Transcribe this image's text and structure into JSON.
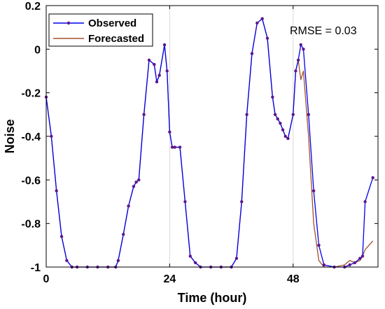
{
  "chart_data": {
    "type": "line",
    "xlabel": "Time (hour)",
    "ylabel": "Noise",
    "xlim": [
      0,
      64.5
    ],
    "ylim": [
      -1,
      0.2
    ],
    "xticks": [
      0,
      24,
      48
    ],
    "xtick_labels": [
      "0",
      "24",
      "48"
    ],
    "yticks": [
      -1,
      -0.8,
      -0.6,
      -0.4,
      -0.2,
      0,
      0.2
    ],
    "ytick_labels": [
      "-1",
      "-0.8",
      "-0.6",
      "-0.4",
      "-0.2",
      "0",
      "0.2"
    ],
    "grid": "x-only",
    "legend": "top-left",
    "annotation": "RMSE = 0.03",
    "series": [
      {
        "name": "Observed",
        "color": "#0000ee",
        "marker_color": "#5c168a",
        "marker": "dot",
        "x": [
          0,
          1,
          2,
          3,
          4,
          5,
          6,
          8,
          10,
          12,
          13.5,
          14,
          15,
          16,
          17,
          17.5,
          18,
          19,
          20,
          21,
          21.5,
          22,
          23,
          23.5,
          24,
          24.5,
          25,
          26,
          27,
          28,
          29,
          30,
          32,
          34,
          36,
          37,
          38,
          39,
          40,
          41,
          42,
          43,
          44,
          44.5,
          45,
          45.5,
          46,
          46.5,
          47,
          48,
          48.5,
          49,
          49.5,
          50,
          51,
          52,
          53,
          54,
          56,
          58,
          59,
          60,
          61,
          61.5,
          62,
          63.5
        ],
        "y": [
          -0.22,
          -0.4,
          -0.65,
          -0.86,
          -0.97,
          -1.0,
          -1.0,
          -1.0,
          -1.0,
          -1.0,
          -1.0,
          -0.97,
          -0.85,
          -0.72,
          -0.63,
          -0.61,
          -0.6,
          -0.3,
          -0.05,
          -0.07,
          -0.15,
          -0.12,
          0.02,
          -0.1,
          -0.38,
          -0.45,
          -0.45,
          -0.45,
          -0.7,
          -0.95,
          -0.98,
          -1.0,
          -1.0,
          -1.0,
          -1.0,
          -0.96,
          -0.7,
          -0.3,
          -0.02,
          0.12,
          0.14,
          0.05,
          -0.22,
          -0.3,
          -0.32,
          -0.34,
          -0.37,
          -0.4,
          -0.41,
          -0.3,
          -0.1,
          -0.05,
          0.02,
          0.0,
          -0.3,
          -0.65,
          -0.9,
          -0.99,
          -1.0,
          -1.0,
          -0.99,
          -0.98,
          -0.96,
          -0.95,
          -0.7,
          -0.59
        ]
      },
      {
        "name": "Forecasted",
        "color": "#a0522d",
        "x": [
          0,
          1,
          2,
          3,
          4,
          5,
          6,
          8,
          10,
          12,
          13.5,
          14,
          15,
          16,
          17,
          17.5,
          18,
          19,
          20,
          21,
          21.5,
          22,
          23,
          23.5,
          24,
          24.5,
          25,
          26,
          27,
          28,
          29,
          30,
          32,
          34,
          36,
          37,
          38,
          39,
          40,
          41,
          42,
          43,
          44,
          44.5,
          45,
          45.5,
          46,
          46.5,
          47,
          48,
          48.5,
          49,
          49.5,
          50,
          51,
          52,
          53,
          54,
          56,
          58,
          59,
          60,
          61,
          61.5,
          62,
          63.5
        ],
        "y": [
          -0.22,
          -0.4,
          -0.65,
          -0.86,
          -0.97,
          -1.0,
          -1.0,
          -1.0,
          -1.0,
          -1.0,
          -1.0,
          -0.97,
          -0.85,
          -0.72,
          -0.63,
          -0.61,
          -0.6,
          -0.3,
          -0.05,
          -0.07,
          -0.15,
          -0.12,
          0.02,
          -0.1,
          -0.38,
          -0.45,
          -0.45,
          -0.45,
          -0.7,
          -0.95,
          -0.98,
          -1.0,
          -1.0,
          -1.0,
          -1.0,
          -0.96,
          -0.7,
          -0.3,
          -0.02,
          0.12,
          0.14,
          0.05,
          -0.22,
          -0.3,
          -0.32,
          -0.34,
          -0.37,
          -0.4,
          -0.41,
          -0.3,
          -0.1,
          -0.05,
          -0.14,
          -0.1,
          -0.4,
          -0.8,
          -0.97,
          -1.0,
          -1.0,
          -0.99,
          -0.97,
          -0.98,
          -0.97,
          -0.95,
          -0.92,
          -0.88
        ]
      }
    ]
  }
}
